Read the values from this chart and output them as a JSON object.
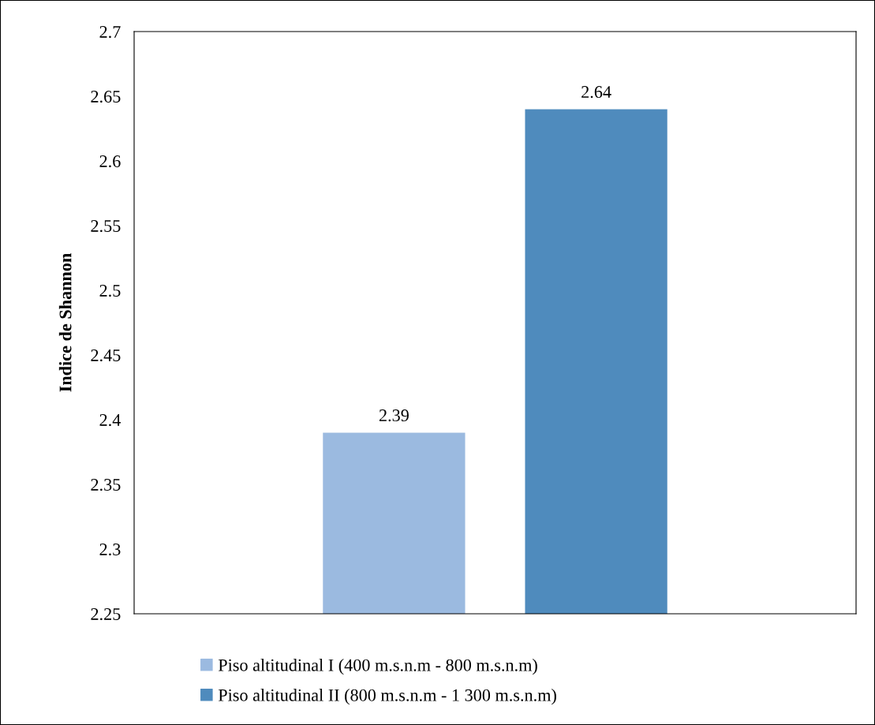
{
  "chart_data": {
    "type": "bar",
    "ylabel": "Indice de Shannon",
    "categories": [
      null
    ],
    "series": [
      {
        "name": "Piso altitudinal I (400 m.s.n.m - 800 m.s.n.m)",
        "color": "#9bbae0",
        "values": [
          2.39
        ]
      },
      {
        "name": "Piso altitudinal II (800 m.s.n.m - 1 300 m.s.n.m)",
        "color": "#4f8bbd",
        "values": [
          2.64
        ]
      }
    ],
    "ylim": [
      2.25,
      2.7
    ],
    "yticks": [
      2.25,
      2.3,
      2.35,
      2.4,
      2.45,
      2.5,
      2.55,
      2.6,
      2.65,
      2.7
    ],
    "data_labels": true,
    "grid": false,
    "legend": "bottom"
  }
}
